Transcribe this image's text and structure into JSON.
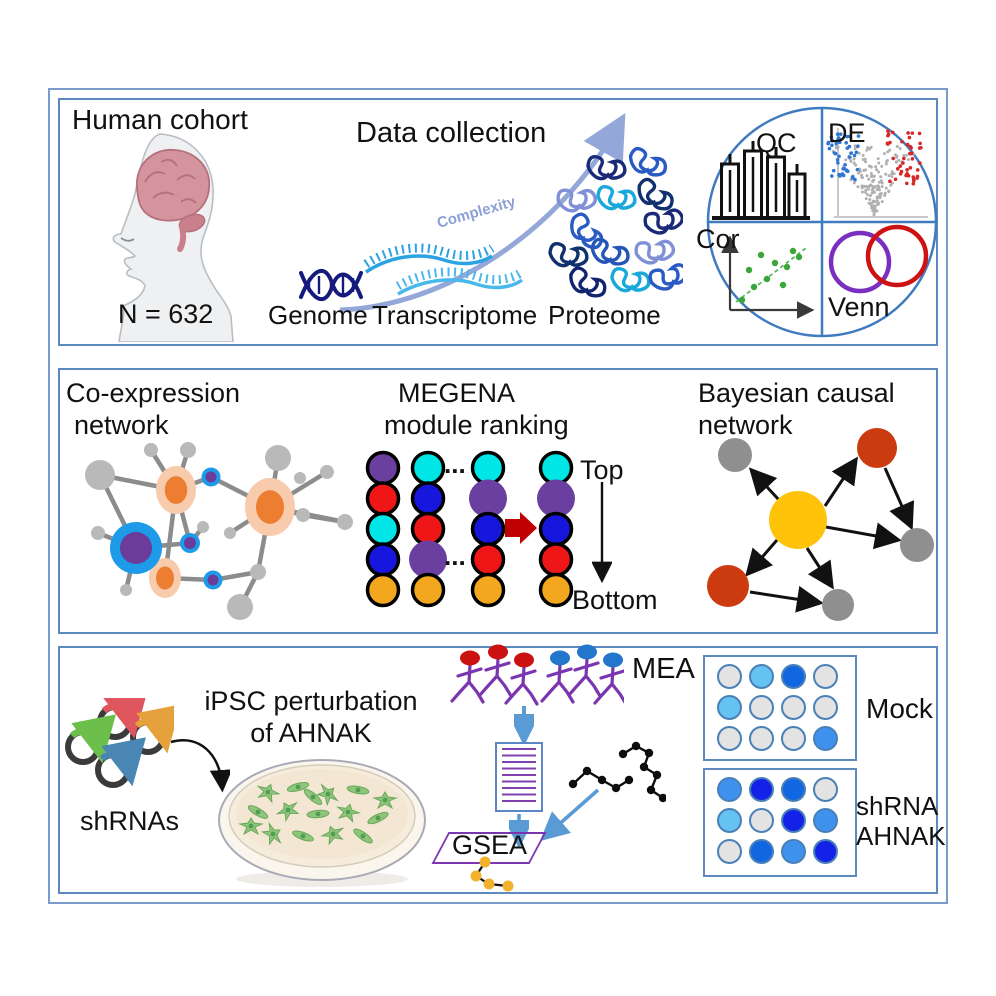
{
  "panel_top": {
    "title": "Human cohort",
    "n_label": "N = 632",
    "data_collection": "Data collection",
    "complexity": "Complexity",
    "omics": {
      "genome": "Genome",
      "transcriptome": "Transcriptome",
      "proteome": "Proteome"
    },
    "analyses": {
      "qc": "QC",
      "de": "DE",
      "cor": "Cor",
      "venn": "Venn"
    }
  },
  "panel_middle": {
    "coexpression": {
      "line1": "Co-expression",
      "line2": "network"
    },
    "megena": {
      "line1": "MEGENA",
      "line2": "module ranking",
      "top": "Top",
      "bottom": "Bottom",
      "ellipsis": "...",
      "columns": [
        [
          "purple",
          "red",
          "cyan",
          "blue",
          "orange"
        ],
        [
          "cyan",
          "blue",
          "red",
          "purple*",
          "orange"
        ],
        [
          "cyan",
          "purple*",
          "blue",
          "red",
          "orange"
        ],
        [
          "cyan",
          "purple*",
          "blue",
          "red",
          "orange"
        ]
      ]
    },
    "bayesian": {
      "line1": "Bayesian causal",
      "line2": "network"
    }
  },
  "panel_bottom": {
    "shrnas": "shRNAs",
    "ipsc": {
      "line1": "iPSC perturbation",
      "line2": "of AHNAK"
    },
    "gsea": "GSEA",
    "mea": "MEA",
    "plates": {
      "mock_label": "Mock",
      "shrna_line1": "shRNA",
      "shrna_line2": "AHNAK",
      "mock_wells": [
        [
          "gray",
          "sky",
          "strong",
          "gray"
        ],
        [
          "sky",
          "gray",
          "gray",
          "gray"
        ],
        [
          "gray",
          "gray",
          "gray",
          "medium"
        ]
      ],
      "shrna_wells": [
        [
          "medium",
          "royal",
          "strong",
          "gray"
        ],
        [
          "sky",
          "gray",
          "royal",
          "medium"
        ],
        [
          "gray",
          "strong",
          "medium",
          "royal"
        ]
      ]
    }
  },
  "palette": {
    "panel_border": "#5d88c0",
    "complexity_arrow": "#93a7d9",
    "rank_arrow_red": "#c00000",
    "flow_arrow_blue": "#5b9bd5",
    "modules": {
      "purple": "#6b3fa0",
      "red": "#ee1616",
      "cyan": "#00e6e6",
      "blue": "#1616dd",
      "orange": "#f2a71e"
    },
    "wells": {
      "gray": "#e3e3e3",
      "sky": "#66c2f0",
      "medium": "#3e92ee",
      "strong": "#1166e2",
      "royal": "#1322e6"
    },
    "bcn": {
      "hub": "#ffc40a",
      "driver": "#cc3a10",
      "node": "#8f8f8f"
    }
  }
}
